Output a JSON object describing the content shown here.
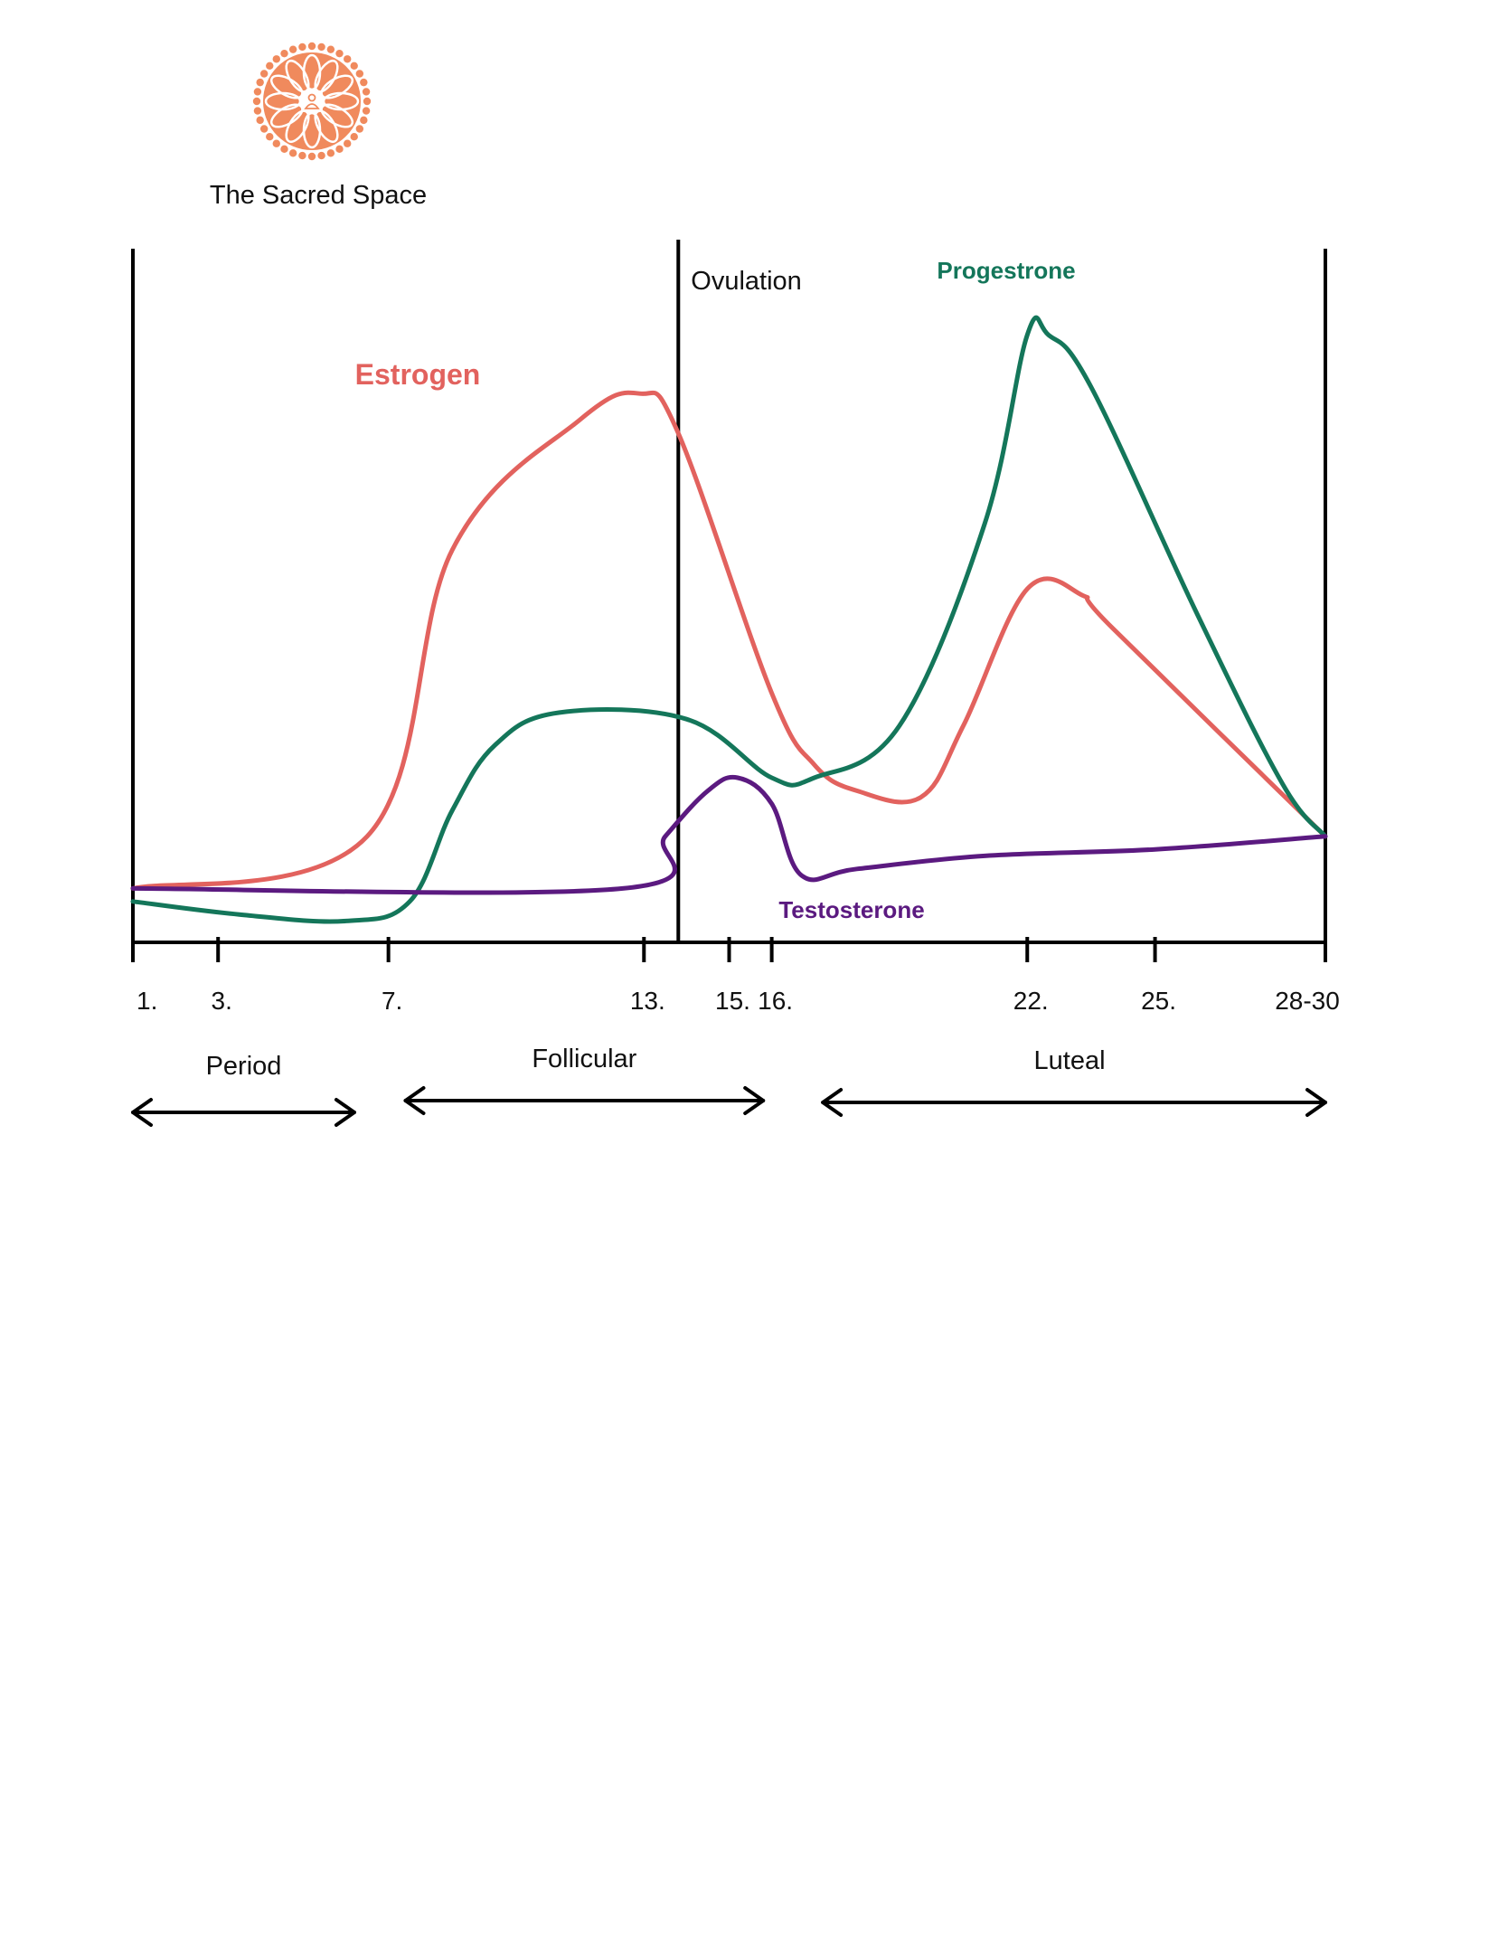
{
  "brand": {
    "name": "The Sacred Space",
    "logo_icon": "mandala-lotus-icon",
    "logo_color": "#f08a5d"
  },
  "annotations": {
    "ovulation_label": "Ovulation"
  },
  "chart_data": {
    "type": "line",
    "title": "",
    "xlabel": "",
    "ylabel": "",
    "grid": false,
    "x_axis_ticks": [
      {
        "day": 1,
        "label": "1."
      },
      {
        "day": 3,
        "label": "3."
      },
      {
        "day": 7,
        "label": "7."
      },
      {
        "day": 13,
        "label": "13."
      },
      {
        "day": 15,
        "label": "15."
      },
      {
        "day": 16,
        "label": "16."
      },
      {
        "day": 22,
        "label": "22."
      },
      {
        "day": 25,
        "label": "25."
      },
      {
        "day": 29,
        "label": "28-30"
      }
    ],
    "xlim": [
      1,
      29
    ],
    "ylim": [
      0,
      100
    ],
    "ovulation_day": 13,
    "series": [
      {
        "name": "Estrogen",
        "color": "#e2625e",
        "points": [
          [
            1,
            8
          ],
          [
            6.5,
            16
          ],
          [
            8.5,
            60
          ],
          [
            11.5,
            80
          ],
          [
            12.9,
            84
          ],
          [
            13.8,
            78
          ],
          [
            16,
            38
          ],
          [
            17,
            27
          ],
          [
            18,
            23
          ],
          [
            19.5,
            22
          ],
          [
            20.5,
            33
          ],
          [
            22,
            54
          ],
          [
            23.3,
            53
          ],
          [
            24,
            48
          ],
          [
            29,
            16
          ]
        ]
      },
      {
        "name": "Progestrone",
        "color": "#14765a",
        "points": [
          [
            1,
            6
          ],
          [
            3.5,
            4
          ],
          [
            6,
            3
          ],
          [
            7.5,
            6
          ],
          [
            8.5,
            20
          ],
          [
            9.5,
            30
          ],
          [
            11,
            35
          ],
          [
            14,
            34
          ],
          [
            16,
            25
          ],
          [
            17,
            25
          ],
          [
            19,
            33
          ],
          [
            21,
            64
          ],
          [
            22,
            93
          ],
          [
            22.5,
            93
          ],
          [
            23.5,
            85
          ],
          [
            26,
            50
          ],
          [
            28,
            24
          ],
          [
            29,
            16
          ]
        ]
      },
      {
        "name": "Testosterone",
        "color": "#5b1a80",
        "points": [
          [
            1,
            8
          ],
          [
            12.5,
            8
          ],
          [
            13.5,
            16
          ],
          [
            14.5,
            23
          ],
          [
            15.2,
            25
          ],
          [
            16,
            21
          ],
          [
            16.7,
            10
          ],
          [
            18,
            11
          ],
          [
            21,
            13
          ],
          [
            25,
            14
          ],
          [
            29,
            16
          ]
        ]
      }
    ],
    "phases": [
      {
        "label": "Period",
        "start_day": 1,
        "end_day": 6.2
      },
      {
        "label": "Follicular",
        "start_day": 7.4,
        "end_day": 15.8
      },
      {
        "label": "Luteal",
        "start_day": 17.2,
        "end_day": 29
      }
    ]
  }
}
